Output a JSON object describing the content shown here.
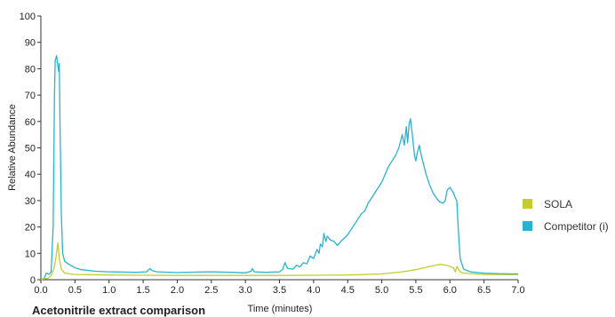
{
  "chart_data": {
    "type": "line",
    "title": "",
    "xlabel": "Time (minutes)",
    "ylabel": "Relative Abundance",
    "xlim": [
      0,
      7
    ],
    "ylim": [
      0,
      100
    ],
    "x_ticks": [
      "0.0",
      "0.5",
      "1.0",
      "1.5",
      "2.0",
      "2.5",
      "3.0",
      "3.5",
      "4.0",
      "4.5",
      "5.0",
      "5.5",
      "6.0",
      "6.5",
      "7.0"
    ],
    "y_ticks": [
      "0",
      "10",
      "20",
      "30",
      "40",
      "50",
      "60",
      "70",
      "80",
      "90",
      "100"
    ],
    "grid": false,
    "legend_position": "right",
    "series": [
      {
        "name": "Competitor (i)",
        "color": "#29b3cf",
        "points": [
          [
            0.0,
            0.2
          ],
          [
            0.05,
            0.5
          ],
          [
            0.08,
            2.5
          ],
          [
            0.12,
            2.0
          ],
          [
            0.15,
            3.0
          ],
          [
            0.18,
            20
          ],
          [
            0.2,
            70
          ],
          [
            0.21,
            83
          ],
          [
            0.23,
            85
          ],
          [
            0.25,
            81
          ],
          [
            0.26,
            79
          ],
          [
            0.27,
            82
          ],
          [
            0.28,
            60
          ],
          [
            0.3,
            25
          ],
          [
            0.32,
            10
          ],
          [
            0.35,
            7
          ],
          [
            0.4,
            6
          ],
          [
            0.5,
            4.5
          ],
          [
            0.6,
            3.8
          ],
          [
            0.8,
            3.2
          ],
          [
            1.0,
            3.0
          ],
          [
            1.2,
            2.9
          ],
          [
            1.4,
            2.8
          ],
          [
            1.55,
            3.0
          ],
          [
            1.6,
            4.2
          ],
          [
            1.63,
            3.5
          ],
          [
            1.7,
            3.0
          ],
          [
            2.0,
            2.7
          ],
          [
            2.3,
            2.9
          ],
          [
            2.5,
            3.0
          ],
          [
            2.8,
            2.8
          ],
          [
            3.0,
            2.6
          ],
          [
            3.08,
            3.2
          ],
          [
            3.1,
            4.2
          ],
          [
            3.13,
            3.0
          ],
          [
            3.3,
            2.8
          ],
          [
            3.5,
            3.0
          ],
          [
            3.55,
            4.0
          ],
          [
            3.58,
            6.5
          ],
          [
            3.62,
            4.2
          ],
          [
            3.7,
            4.0
          ],
          [
            3.75,
            5.5
          ],
          [
            3.8,
            4.8
          ],
          [
            3.85,
            6.5
          ],
          [
            3.9,
            6.0
          ],
          [
            3.95,
            9.0
          ],
          [
            4.0,
            8.0
          ],
          [
            4.05,
            11.5
          ],
          [
            4.08,
            10
          ],
          [
            4.1,
            13.5
          ],
          [
            4.13,
            12.5
          ],
          [
            4.15,
            17.5
          ],
          [
            4.18,
            14.5
          ],
          [
            4.2,
            16.5
          ],
          [
            4.25,
            15
          ],
          [
            4.3,
            14.5
          ],
          [
            4.35,
            13
          ],
          [
            4.4,
            14.5
          ],
          [
            4.5,
            17
          ],
          [
            4.6,
            21
          ],
          [
            4.7,
            25
          ],
          [
            4.75,
            26
          ],
          [
            4.8,
            29
          ],
          [
            4.85,
            31
          ],
          [
            4.9,
            33
          ],
          [
            4.95,
            35
          ],
          [
            5.0,
            37
          ],
          [
            5.05,
            40
          ],
          [
            5.1,
            43
          ],
          [
            5.15,
            45
          ],
          [
            5.2,
            47
          ],
          [
            5.25,
            50
          ],
          [
            5.3,
            55
          ],
          [
            5.33,
            51
          ],
          [
            5.36,
            58
          ],
          [
            5.38,
            52
          ],
          [
            5.4,
            59
          ],
          [
            5.42,
            61
          ],
          [
            5.44,
            57
          ],
          [
            5.46,
            52
          ],
          [
            5.48,
            47
          ],
          [
            5.5,
            45
          ],
          [
            5.52,
            48
          ],
          [
            5.55,
            51
          ],
          [
            5.58,
            47
          ],
          [
            5.6,
            45
          ],
          [
            5.65,
            40
          ],
          [
            5.7,
            36
          ],
          [
            5.75,
            33
          ],
          [
            5.8,
            31
          ],
          [
            5.85,
            29.5
          ],
          [
            5.9,
            29
          ],
          [
            5.93,
            30
          ],
          [
            5.96,
            34
          ],
          [
            6.0,
            35
          ],
          [
            6.05,
            33
          ],
          [
            6.08,
            31
          ],
          [
            6.1,
            30
          ],
          [
            6.12,
            20
          ],
          [
            6.15,
            8
          ],
          [
            6.2,
            4
          ],
          [
            6.3,
            3
          ],
          [
            6.5,
            2.5
          ],
          [
            6.7,
            2.3
          ],
          [
            7.0,
            2.2
          ]
        ]
      },
      {
        "name": "SOLA",
        "color": "#c3cd2e",
        "points": [
          [
            0.0,
            0.1
          ],
          [
            0.1,
            0.5
          ],
          [
            0.15,
            1.5
          ],
          [
            0.2,
            5
          ],
          [
            0.23,
            10
          ],
          [
            0.25,
            14
          ],
          [
            0.27,
            8
          ],
          [
            0.3,
            4
          ],
          [
            0.35,
            2.5
          ],
          [
            0.5,
            2.0
          ],
          [
            1.0,
            1.8
          ],
          [
            1.5,
            1.7
          ],
          [
            2.0,
            1.6
          ],
          [
            2.5,
            1.6
          ],
          [
            3.0,
            1.6
          ],
          [
            3.5,
            1.6
          ],
          [
            4.0,
            1.7
          ],
          [
            4.5,
            1.8
          ],
          [
            5.0,
            2.2
          ],
          [
            5.3,
            3
          ],
          [
            5.5,
            3.8
          ],
          [
            5.7,
            5
          ],
          [
            5.85,
            5.8
          ],
          [
            5.95,
            5.5
          ],
          [
            6.05,
            4.5
          ],
          [
            6.08,
            3
          ],
          [
            6.1,
            5
          ],
          [
            6.15,
            3
          ],
          [
            6.2,
            2.5
          ],
          [
            6.5,
            2.0
          ],
          [
            7.0,
            1.9
          ]
        ]
      }
    ]
  },
  "legend": [
    {
      "label": "SOLA",
      "color": "#c3cd2e"
    },
    {
      "label": "Competitor (i)",
      "color": "#29b3cf"
    }
  ],
  "caption_partial": "Acetonitrile extract comparison"
}
